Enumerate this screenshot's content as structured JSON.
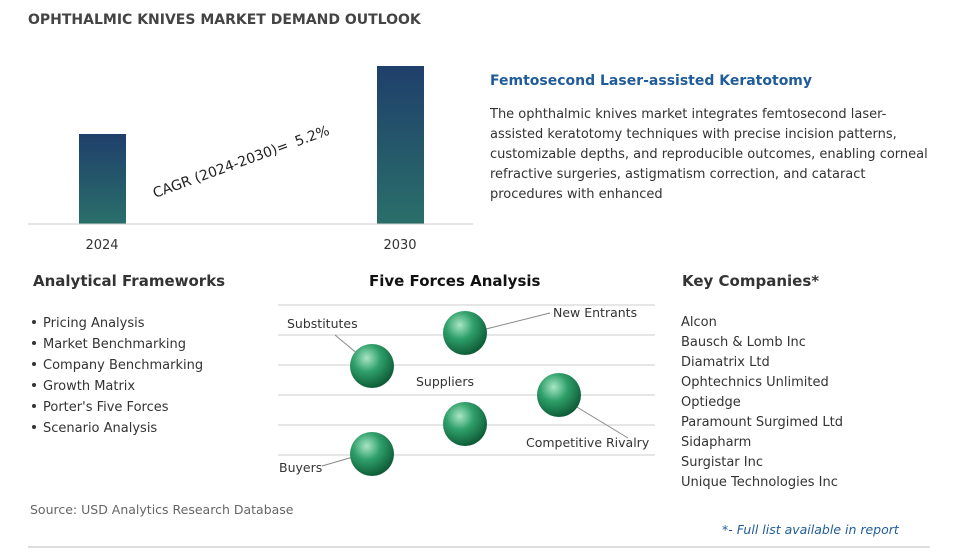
{
  "header": {
    "title": "OPHTHALMIC KNIVES MARKET DEMAND OUTLOOK"
  },
  "chart": {
    "categories": [
      "2024",
      "2030"
    ],
    "cagr_label": "CAGR (2024-2030)=",
    "cagr_value": "5.2%"
  },
  "feature": {
    "title": "Femtosecond Laser-assisted Keratotomy",
    "text": "The ophthalmic knives market integrates femtosecond laser-assisted keratotomy techniques with precise incision patterns, customizable depths, and reproducible outcomes, enabling corneal refractive surgeries, astigmatism correction, and cataract procedures with enhanced"
  },
  "frameworks": {
    "title": "Analytical Frameworks",
    "items": [
      "Pricing Analysis",
      "Market Benchmarking",
      "Company Benchmarking",
      "Growth Matrix",
      "Porter's Five Forces",
      "Scenario Analysis"
    ]
  },
  "five_forces": {
    "title": "Five Forces Analysis",
    "labels": [
      "Substitutes",
      "New Entrants",
      "Suppliers",
      "Competitive Rivalry",
      "Buyers"
    ]
  },
  "companies": {
    "title": "Key Companies*",
    "items": [
      "Alcon",
      "Bausch & Lomb Inc",
      "Diamatrix Ltd",
      "Ophtechnics Unlimited",
      "Optiedge",
      "Paramount Surgimed Ltd",
      "Sidapharm",
      "Surgistar Inc",
      "Unique Technologies Inc"
    ]
  },
  "source": "Source: USD Analytics Research Database",
  "footnote": "*- Full list available in report"
}
